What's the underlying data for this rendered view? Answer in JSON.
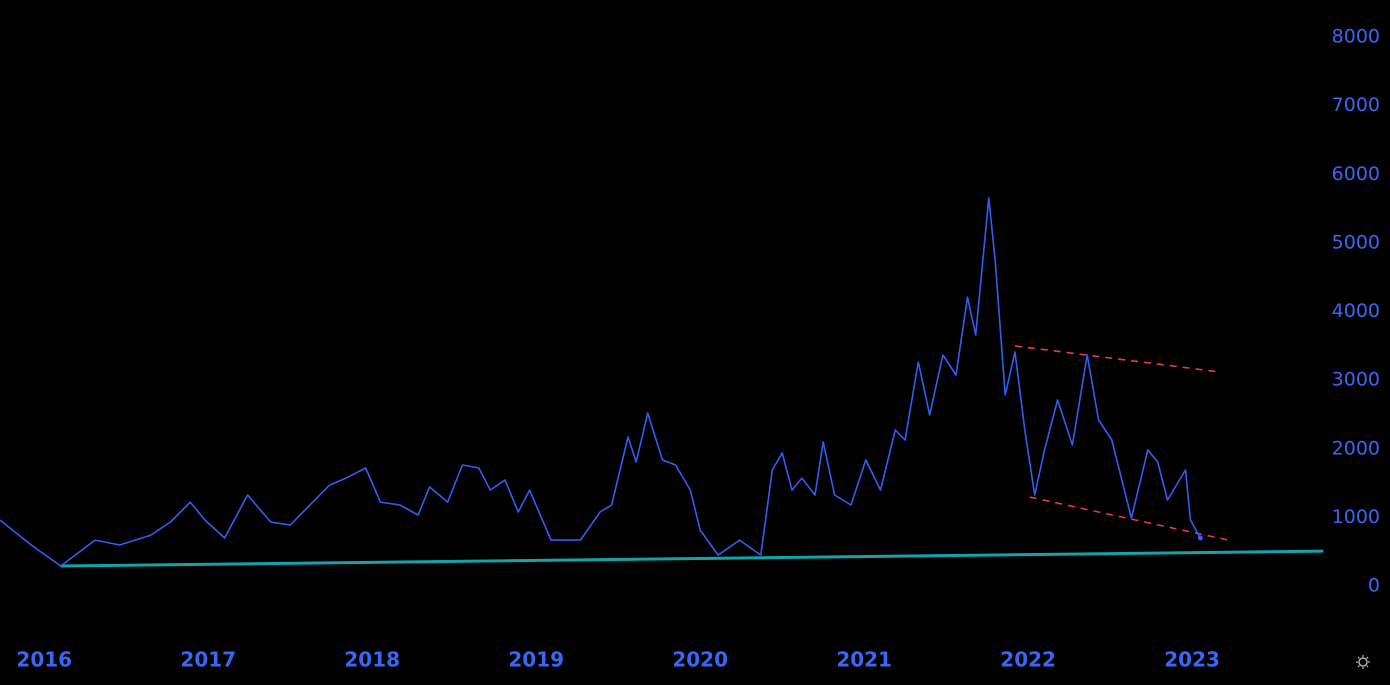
{
  "chart_data": {
    "type": "line",
    "x": [
      2015.73,
      2015.92,
      2016.1,
      2016.31,
      2016.46,
      2016.65,
      2016.77,
      2016.89,
      2016.98,
      2017.1,
      2017.24,
      2017.38,
      2017.5,
      2017.65,
      2017.74,
      2017.84,
      2017.96,
      2018.05,
      2018.17,
      2018.28,
      2018.35,
      2018.46,
      2018.55,
      2018.65,
      2018.72,
      2018.81,
      2018.89,
      2018.96,
      2019.09,
      2019.27,
      2019.39,
      2019.46,
      2019.56,
      2019.61,
      2019.68,
      2019.77,
      2019.85,
      2019.94,
      2020.0,
      2020.11,
      2020.24,
      2020.37,
      2020.44,
      2020.5,
      2020.56,
      2020.62,
      2020.7,
      2020.75,
      2020.82,
      2020.92,
      2021.01,
      2021.1,
      2021.19,
      2021.25,
      2021.33,
      2021.4,
      2021.48,
      2021.56,
      2021.63,
      2021.68,
      2021.76,
      2021.8,
      2021.86,
      2021.92,
      2021.98,
      2022.04,
      2022.1,
      2022.18,
      2022.27,
      2022.36,
      2022.43,
      2022.51,
      2022.63,
      2022.73,
      2022.79,
      2022.85,
      2022.96,
      2022.99,
      2023.05
    ],
    "series": [
      {
        "color": "#2f5ff2",
        "values": [
          962,
          598,
          292,
          670,
          598,
          743,
          933,
          1224,
          962,
          700,
          1327,
          933,
          889,
          1254,
          1472,
          1574,
          1720,
          1224,
          1181,
          1035,
          1443,
          1224,
          1764,
          1720,
          1399,
          1545,
          1079,
          1399,
          670,
          670,
          1079,
          1181,
          2172,
          1808,
          2522,
          1837,
          1764,
          1399,
          816,
          452,
          670,
          452,
          1691,
          1939,
          1399,
          1574,
          1327,
          2099,
          1327,
          1181,
          1837,
          1399,
          2274,
          2128,
          3265,
          2493,
          3367,
          3076,
          4213,
          3659,
          5656,
          4723,
          2784,
          3411,
          2274,
          1327,
          1983,
          2711,
          2055,
          3367,
          2420,
          2128,
          991,
          1983,
          1808,
          1254,
          1691,
          962,
          700
        ]
      }
    ],
    "trendlines": [
      {
        "color": "#12a4aa",
        "dash": false,
        "x": [
          2016.1,
          2023.8
        ],
        "values": [
          292,
          510
        ]
      },
      {
        "color": "#e8336b",
        "dash": true,
        "x": [
          2021.92,
          2023.17
        ],
        "values": [
          3500,
          3120
        ]
      },
      {
        "color": "#e8336b",
        "dash": true,
        "x": [
          2022.01,
          2023.22
        ],
        "values": [
          1297,
          670
        ]
      }
    ],
    "xlim": [
      2015.73,
      2023.78
    ],
    "ylim": [
      -640,
      8540
    ],
    "xticks": [
      2016,
      2017,
      2018,
      2019,
      2020,
      2021,
      2022,
      2023
    ],
    "yticks": [
      0,
      1000,
      2000,
      3000,
      4000,
      5000,
      6000,
      7000,
      8000
    ],
    "background": "#000000"
  }
}
